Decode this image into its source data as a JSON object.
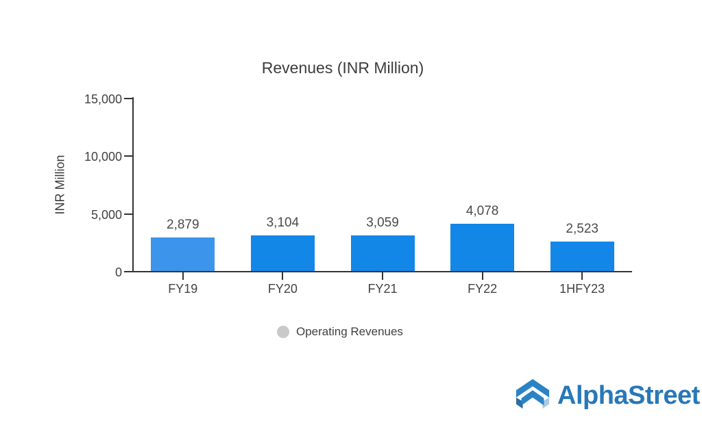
{
  "chart_data": {
    "type": "bar",
    "title": "Revenues (INR Million)",
    "xlabel": "",
    "ylabel": "INR Million",
    "categories": [
      "FY19",
      "FY20",
      "FY21",
      "FY22",
      "1HFY23"
    ],
    "series": [
      {
        "name": "Operating Revenues",
        "values": [
          2879,
          3104,
          3059,
          4078,
          2523
        ]
      }
    ],
    "values": [
      2879,
      3104,
      3059,
      4078,
      2523
    ],
    "value_labels": [
      "2,879",
      "3,104",
      "3,059",
      "4,078",
      "2,523"
    ],
    "ylim": [
      0,
      15000
    ],
    "yticks": [
      0,
      5000,
      10000,
      15000
    ],
    "ytick_labels": [
      "0",
      "5,000",
      "10,000",
      "15,000"
    ],
    "grid": false,
    "legend": {
      "position": "bottom",
      "label": "Operating Revenues",
      "marker_color": "#c9c9c9"
    },
    "bar_colors": [
      "#3c95ea",
      "#1287e8",
      "#1287e8",
      "#1287e8",
      "#1287e8"
    ],
    "axis_color": "#333333"
  },
  "branding": {
    "logo_text": "AlphaStreet",
    "logo_text_color": "#2878b8",
    "logo_icon_colors": {
      "primary": "#2a83c5",
      "dark": "#2d6da3",
      "light": "#a9cbe3"
    }
  }
}
